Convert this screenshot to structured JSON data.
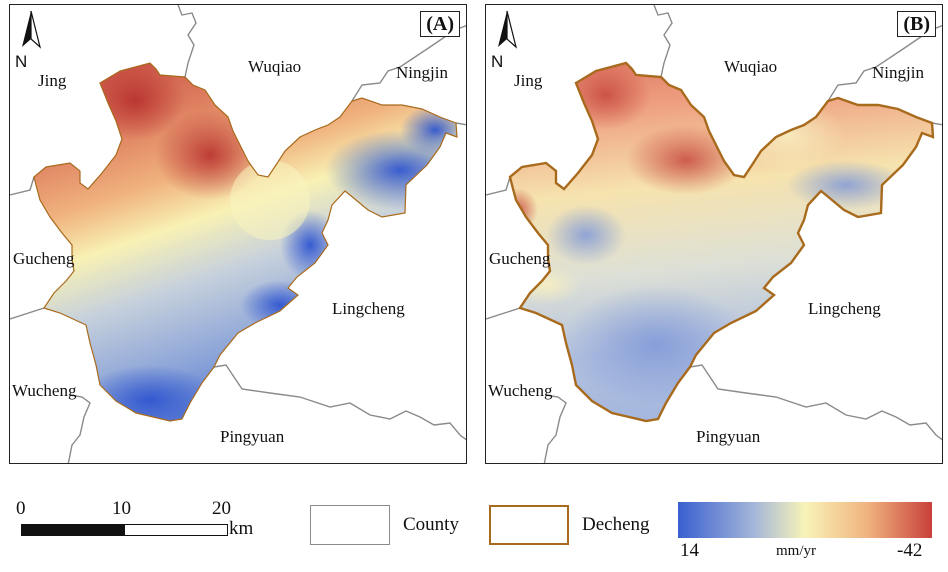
{
  "panels": [
    {
      "letter": "(A)",
      "north": "N",
      "places": {
        "jing": "Jing",
        "wuqiao": "Wuqiao",
        "ningjin": "Ningjin",
        "gucheng": "Gucheng",
        "lingcheng": "Lingcheng",
        "wucheng": "Wucheng",
        "pingyuan": "Pingyuan"
      }
    },
    {
      "letter": "(B)",
      "north": "N",
      "places": {
        "jing": "Jing",
        "wuqiao": "Wuqiao",
        "ningjin": "Ningjin",
        "gucheng": "Gucheng",
        "lingcheng": "Lingcheng",
        "wucheng": "Wucheng",
        "pingyuan": "Pingyuan"
      }
    }
  ],
  "scale_bar": {
    "ticks": [
      "0",
      "10",
      "20"
    ],
    "unit": "km"
  },
  "legend": {
    "county_label": "County",
    "decheng_label": "Decheng",
    "colorbar_min": "14",
    "colorbar_max": "-42",
    "colorbar_unit": "mm/yr"
  },
  "colors": {
    "county_border": "#8a8a8a",
    "decheng_border": "#a86a1c",
    "ramp": [
      "#3a5fd0",
      "#9fb3dc",
      "#f8f3b8",
      "#f0b27e",
      "#c8403a"
    ]
  }
}
